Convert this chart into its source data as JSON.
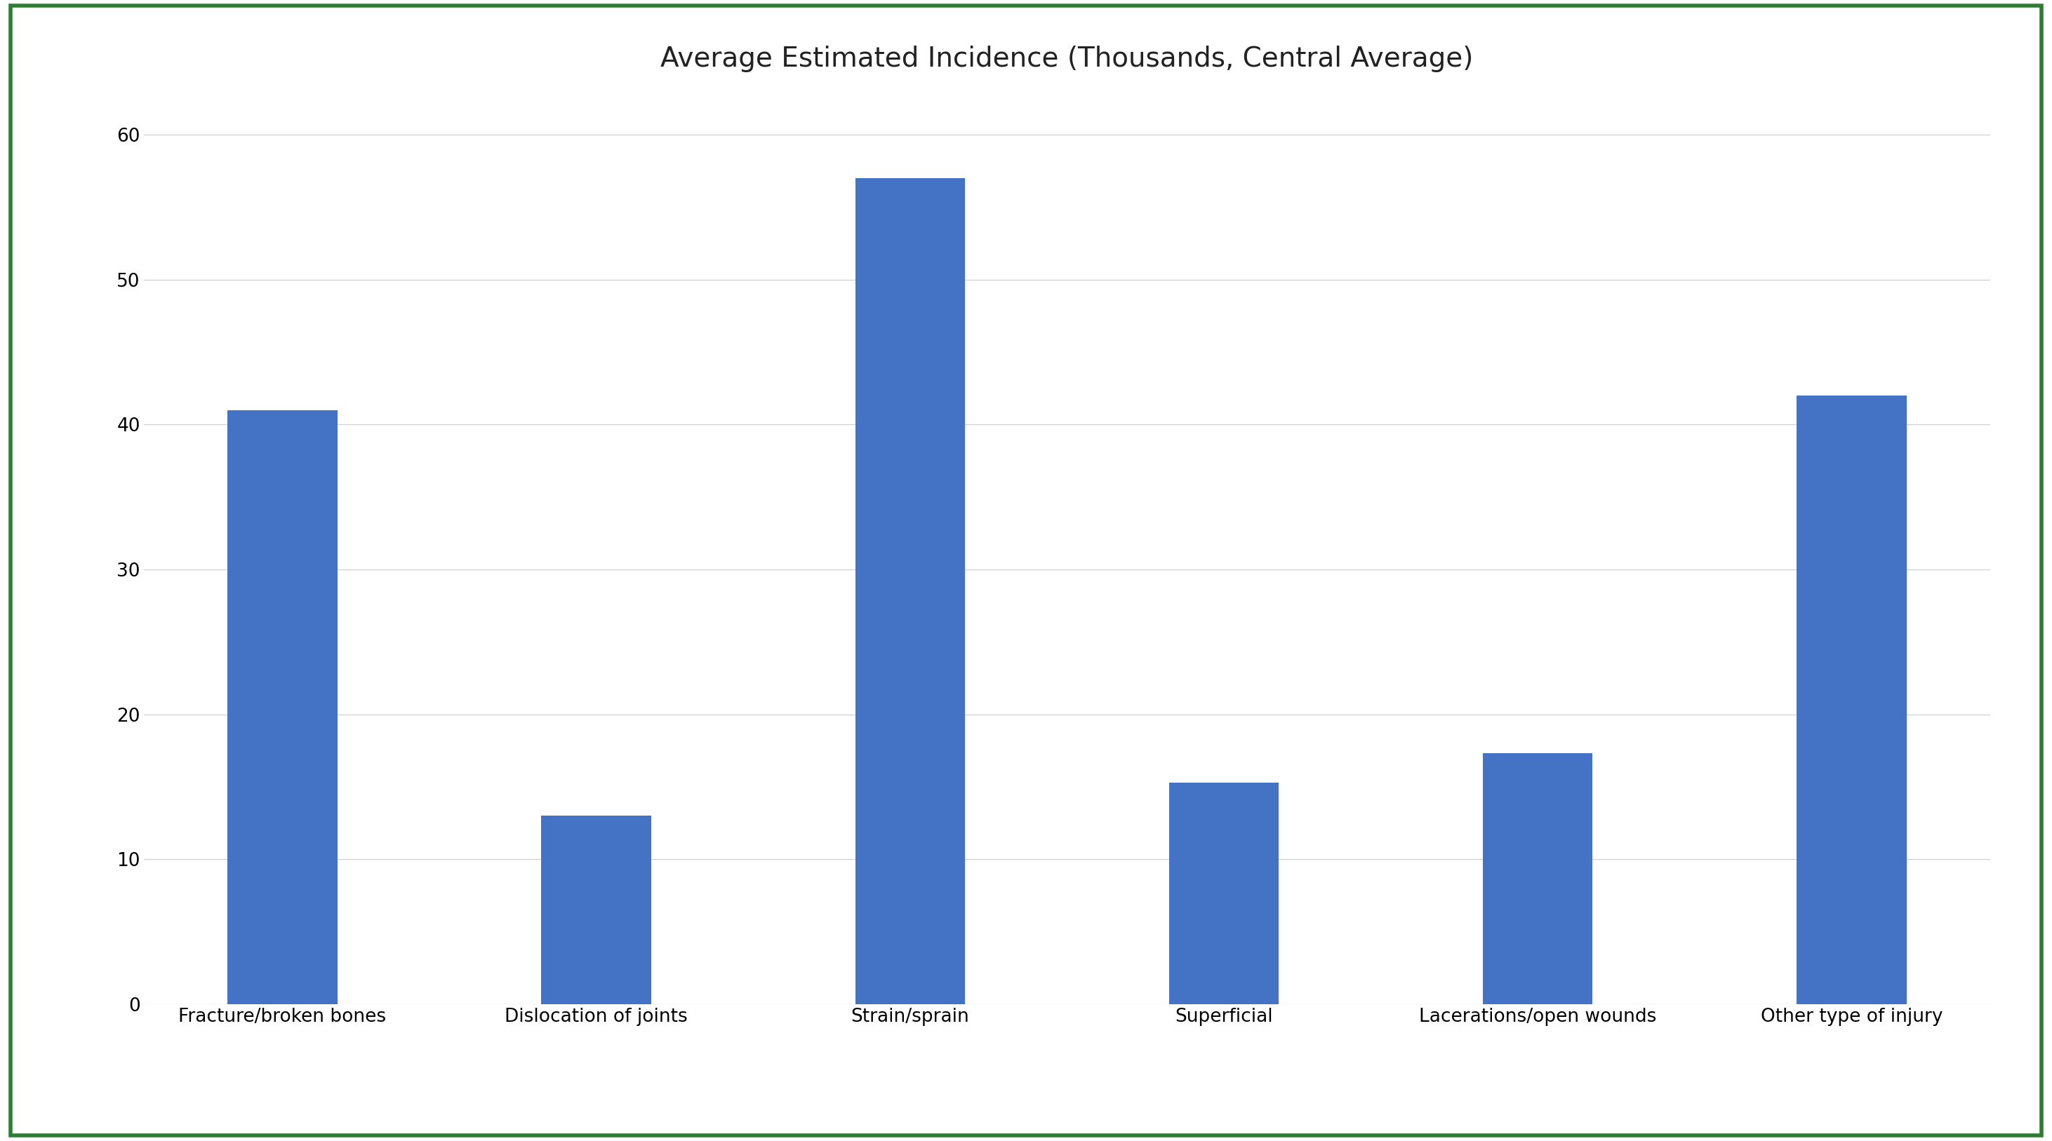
{
  "title": "Average Estimated Incidence (Thousands, Central Average)",
  "categories": [
    "Fracture/broken bones",
    "Dislocation of joints",
    "Strain/sprain",
    "Superficial",
    "Lacerations/open wounds",
    "Other type of injury"
  ],
  "values": [
    41,
    13,
    57,
    15.3,
    17.3,
    42
  ],
  "bar_color": "#4472C4",
  "ylim": [
    0,
    63
  ],
  "yticks": [
    0,
    10,
    20,
    30,
    40,
    50,
    60
  ],
  "title_fontsize": 28,
  "tick_fontsize": 19,
  "background_color": "#FFFFFF",
  "grid_color": "#D0D0D0",
  "border_color": "#2E7D32",
  "bar_width": 0.35
}
